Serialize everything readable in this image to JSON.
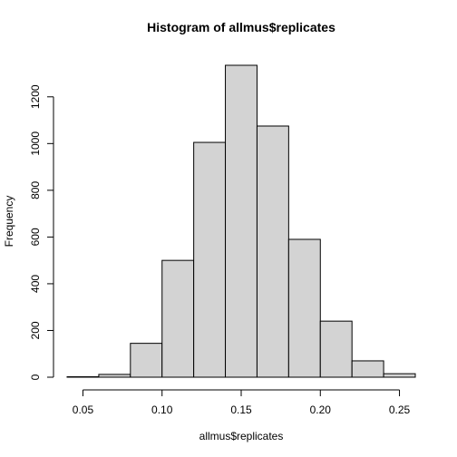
{
  "chart_data": {
    "type": "bar",
    "title": "Histogram of allmus$replicates",
    "xlabel": "allmus$replicates",
    "ylabel": "Frequency",
    "bins": [
      {
        "x0": 0.04,
        "x1": 0.06,
        "count": 2
      },
      {
        "x0": 0.06,
        "x1": 0.08,
        "count": 12
      },
      {
        "x0": 0.08,
        "x1": 0.1,
        "count": 145
      },
      {
        "x0": 0.1,
        "x1": 0.12,
        "count": 500
      },
      {
        "x0": 0.12,
        "x1": 0.14,
        "count": 1005
      },
      {
        "x0": 0.14,
        "x1": 0.16,
        "count": 1335
      },
      {
        "x0": 0.16,
        "x1": 0.18,
        "count": 1075
      },
      {
        "x0": 0.18,
        "x1": 0.2,
        "count": 590
      },
      {
        "x0": 0.2,
        "x1": 0.22,
        "count": 240
      },
      {
        "x0": 0.22,
        "x1": 0.24,
        "count": 70
      },
      {
        "x0": 0.24,
        "x1": 0.26,
        "count": 15
      }
    ],
    "xlim": [
      0.04,
      0.26
    ],
    "ylim": [
      0,
      1335
    ],
    "xticks": [
      "0.05",
      "0.10",
      "0.15",
      "0.20",
      "0.25"
    ],
    "yticks": [
      "0",
      "200",
      "400",
      "600",
      "800",
      "1000",
      "1200"
    ],
    "grid": false,
    "bar_color": "#d3d3d3",
    "edge_color": "#000000"
  }
}
